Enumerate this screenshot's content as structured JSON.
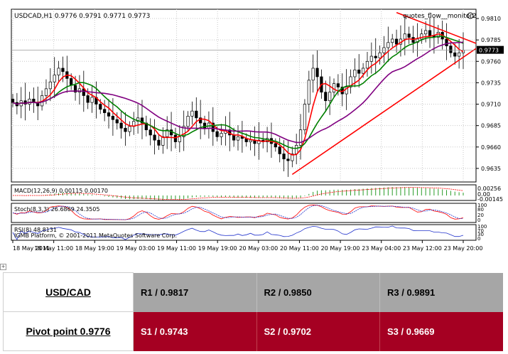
{
  "chart_data": {
    "type": "candlestick",
    "title": "USDCAD,H1  0.9776 0.9791 0.9771 0.9773",
    "symbol": "USDCAD,H1",
    "ohlc_header": [
      "0.9776",
      "0.9791",
      "0.9771",
      "0.9773"
    ],
    "indicator_label": "quotes_flow__monitor2",
    "current_price": 0.9773,
    "current_price_label": "0.9773",
    "y_range": [
      0.962,
      0.982
    ],
    "y_ticks": [
      "0.9810",
      "0.9785",
      "0.9760",
      "0.9735",
      "0.9710",
      "0.9685",
      "0.9660",
      "0.9635"
    ],
    "x_ticks": [
      "18 May 2011",
      "18 May 11:00",
      "18 May 19:00",
      "19 May 03:00",
      "19 May 11:00",
      "19 May 19:00",
      "20 May 03:00",
      "20 May 11:00",
      "20 May 19:00",
      "23 May 04:00",
      "23 May 12:00",
      "23 May 20:00"
    ],
    "closes": [
      0.9712,
      0.9708,
      0.9714,
      0.971,
      0.9716,
      0.9712,
      0.9708,
      0.972,
      0.9728,
      0.9736,
      0.9744,
      0.9752,
      0.9748,
      0.974,
      0.9732,
      0.9724,
      0.9728,
      0.972,
      0.9712,
      0.9718,
      0.971,
      0.9704,
      0.97,
      0.9696,
      0.9692,
      0.9688,
      0.9682,
      0.9678,
      0.9684,
      0.969,
      0.9694,
      0.9688,
      0.968,
      0.9674,
      0.9668,
      0.9662,
      0.9672,
      0.968,
      0.9674,
      0.9666,
      0.9672,
      0.9684,
      0.9696,
      0.9702,
      0.9694,
      0.9688,
      0.9682,
      0.9688,
      0.9678,
      0.9672,
      0.9676,
      0.968,
      0.9674,
      0.9668,
      0.9672,
      0.967,
      0.9666,
      0.9668,
      0.9664,
      0.9668,
      0.9666,
      0.967,
      0.9664,
      0.966,
      0.9652,
      0.9646,
      0.9644,
      0.9652,
      0.9662,
      0.968,
      0.971,
      0.9738,
      0.9752,
      0.9742,
      0.9724,
      0.9714,
      0.9724,
      0.9734,
      0.973,
      0.9722,
      0.973,
      0.9742,
      0.975,
      0.9746,
      0.9752,
      0.976,
      0.9766,
      0.9764,
      0.977,
      0.9776,
      0.9782,
      0.9786,
      0.978,
      0.9786,
      0.9792,
      0.9788,
      0.9782,
      0.9786,
      0.9792,
      0.9796,
      0.979,
      0.9788,
      0.9794,
      0.9786,
      0.9778,
      0.977,
      0.9766,
      0.977,
      0.9773
    ],
    "moving_averages": [
      {
        "period": 5,
        "color": "#ff0000"
      },
      {
        "period": 10,
        "color": "#008000"
      },
      {
        "period": 21,
        "color": "#800080"
      }
    ],
    "trendlines": [
      {
        "from": [
          67,
          0.9628
        ],
        "to": [
          108,
          0.9775
        ],
        "color": "#ff0000"
      },
      {
        "from": [
          92,
          0.9817
        ],
        "to": [
          108,
          0.9781
        ],
        "color": "#ff0000"
      }
    ],
    "subpanels": [
      {
        "label": "MACD(12,26,9) 0.00115 0.00170",
        "scale_labels": [
          "0.00256",
          "0.00",
          "-0.00145"
        ]
      },
      {
        "label": "Stoch(8,3,3) 26.6869 24.3505",
        "scale_labels": [
          "100",
          "80",
          "20",
          "0"
        ]
      },
      {
        "label": "RSI(8) 48.8131",
        "scale_labels": [
          "100",
          "70",
          "30",
          "0"
        ]
      }
    ],
    "copyright": "IGMB Platform, © 2001-2011 MetaQuotes Software Corp."
  },
  "marker_glyph": "+",
  "pivot_table": {
    "pair": "USD/CAD",
    "pivot": "Pivot point 0.9776",
    "resistance": [
      "R1 / 0.9817",
      "R2 / 0.9850",
      "R3 / 0.9891"
    ],
    "support": [
      "S1 / 0.9743",
      "S2 / 0.9702",
      "S3 / 0.9669"
    ]
  },
  "colors": {
    "resistance_bg": "#a6a6a6",
    "support_bg": "#a50022"
  }
}
